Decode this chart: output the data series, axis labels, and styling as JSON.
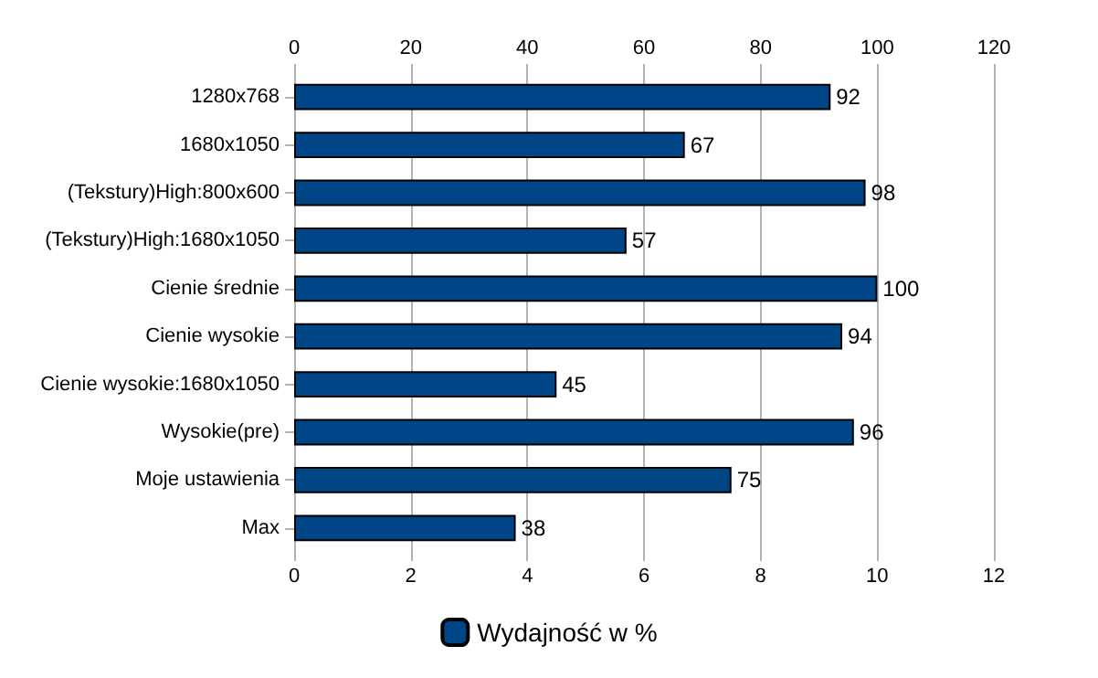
{
  "chart_data": {
    "type": "bar",
    "orientation": "horizontal",
    "categories": [
      "1280x768",
      "1680x1050",
      "(Tekstury)High:800x600",
      "(Tekstury)High:1680x1050",
      "Cienie średnie",
      "Cienie wysokie",
      "Cienie wysokie:1680x1050",
      "Wysokie(pre)",
      "Moje ustawienia",
      "Max"
    ],
    "series": [
      {
        "name": "Wydajność w %",
        "color": "#004586",
        "axis": "x2",
        "values": [
          92,
          67,
          98,
          57,
          100,
          94,
          45,
          96,
          75,
          38
        ]
      }
    ],
    "xlim": [
      0,
      12
    ],
    "xticks": [
      0,
      2,
      4,
      6,
      8,
      10,
      12
    ],
    "x2lim": [
      0,
      120
    ],
    "x2ticks": [
      0,
      20,
      40,
      60,
      80,
      100,
      120
    ],
    "data_labels": true,
    "grid": "x",
    "legend": "bottom"
  }
}
